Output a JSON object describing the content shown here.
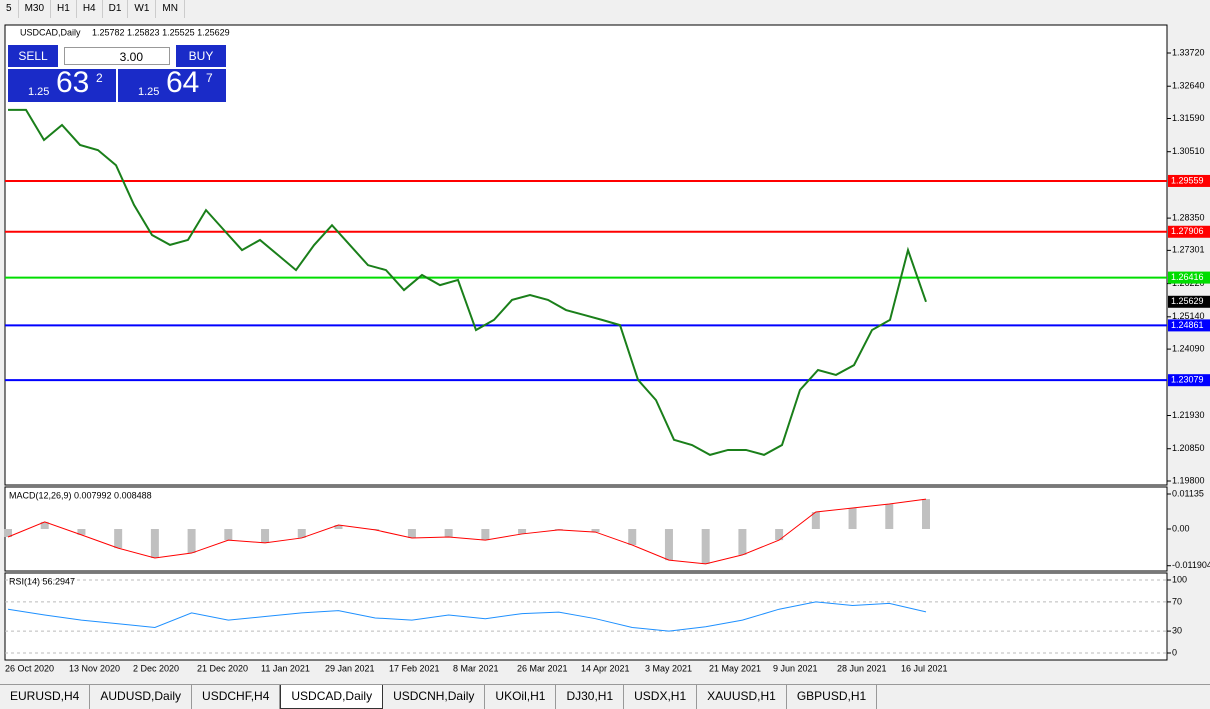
{
  "toolbar": {
    "timeframes": [
      "5",
      "M30",
      "H1",
      "H4",
      "D1",
      "W1",
      "MN"
    ]
  },
  "header": {
    "symbol": "USDCAD,Daily",
    "quote": "1.25782 1.25823 1.25525 1.25629"
  },
  "trade_panel": {
    "sell": "SELL",
    "buy": "BUY",
    "lots": "3.00",
    "sell_price": {
      "prefix": "1.25",
      "big": "63",
      "small": "2"
    },
    "buy_price": {
      "prefix": "1.25",
      "big": "64",
      "small": "7"
    }
  },
  "chart": {
    "type": "line",
    "color": "#1a7f1a",
    "values": [
      1.3187,
      1.3187,
      1.3089,
      1.3138,
      1.3073,
      1.3056,
      1.3007,
      1.2878,
      1.278,
      1.2748,
      1.2764,
      1.2861,
      1.2796,
      1.2731,
      1.2764,
      1.2715,
      1.2666,
      1.2747,
      1.2812,
      1.2747,
      1.2682,
      1.2666,
      1.2601,
      1.265,
      1.2617,
      1.2634,
      1.2471,
      1.2504,
      1.2569,
      1.2585,
      1.2569,
      1.2536,
      1.252,
      1.2504,
      1.2487,
      1.2309,
      1.2243,
      1.2114,
      1.2097,
      1.2065,
      1.2081,
      1.2081,
      1.2065,
      1.2097,
      1.2276,
      1.2341,
      1.2325,
      1.2357,
      1.2471,
      1.2504,
      1.2731,
      1.25629
    ],
    "ylim": [
      1.1967,
      1.34631
    ],
    "yticks": [
      {
        "value": 1.3372,
        "label": "1.33720"
      },
      {
        "value": 1.3264,
        "label": "1.32640"
      },
      {
        "value": 1.3159,
        "label": "1.31590"
      },
      {
        "value": 1.3051,
        "label": "1.30510"
      },
      {
        "value": 1.2835,
        "label": "1.28350"
      },
      {
        "value": 1.27301,
        "label": "1.27301"
      },
      {
        "value": 1.2622,
        "label": "1.26220"
      },
      {
        "value": 1.2514,
        "label": "1.25140"
      },
      {
        "value": 1.2409,
        "label": "1.24090"
      },
      {
        "value": 1.2193,
        "label": "1.21930"
      },
      {
        "value": 1.2085,
        "label": "1.20850"
      },
      {
        "value": 1.198,
        "label": "1.19800"
      }
    ],
    "levels": [
      {
        "value": 1.29559,
        "color": "#ff0000"
      },
      {
        "value": 1.27906,
        "color": "#ff0000"
      },
      {
        "value": 1.26416,
        "color": "#00dd00"
      },
      {
        "value": 1.24861,
        "color": "#0000ff"
      },
      {
        "value": 1.23079,
        "color": "#0000ff"
      }
    ],
    "current": 1.25629,
    "x_labels": [
      "26 Oct 2020",
      "13 Nov 2020",
      "2 Dec 2020",
      "21 Dec 2020",
      "11 Jan 2021",
      "29 Jan 2021",
      "17 Feb 2021",
      "8 Mar 2021",
      "26 Mar 2021",
      "14 Apr 2021",
      "3 May 2021",
      "21 May 2021",
      "9 Jun 2021",
      "28 Jun 2021",
      "16 Jul 2021"
    ]
  },
  "macd": {
    "title": "MACD(12,26,9) 0.007992 0.008488",
    "color": "#ff0000",
    "histogram_color": "#c0c0c0",
    "values": [
      -0.0026,
      0.0023,
      -0.0019,
      -0.0062,
      -0.0094,
      -0.0078,
      -0.0036,
      -0.0045,
      -0.0029,
      0.0013,
      -0.0003,
      -0.0029,
      -0.0026,
      -0.0036,
      -0.0016,
      -0.0003,
      -0.001,
      -0.0052,
      -0.0101,
      -0.0113,
      -0.0084,
      -0.0036,
      0.0055,
      0.0068,
      0.0081,
      0.0097
    ],
    "ylim": [
      -0.01362,
      0.01362
    ],
    "yticks": [
      {
        "value": 0.01135,
        "label": "0.01135"
      },
      {
        "value": 0,
        "label": "0.00"
      },
      {
        "value": -0.011904,
        "label": "-0.011904"
      }
    ]
  },
  "rsi": {
    "title": "RSI(14) 56.2947",
    "color": "#1e90ff",
    "values": [
      60,
      52,
      45,
      40,
      35,
      55,
      45,
      50,
      55,
      58,
      48,
      45,
      52,
      47,
      54,
      56,
      47,
      35,
      30,
      36,
      45,
      60,
      70,
      65,
      68,
      56.3
    ],
    "ylim": [
      -9.6,
      109.6
    ],
    "yticks": [
      100,
      70,
      30,
      0
    ]
  },
  "tabs": {
    "items": [
      "EURUSD,H4",
      "AUDUSD,Daily",
      "USDCHF,H4",
      "USDCAD,Daily",
      "USDCNH,Daily",
      "UKOil,H1",
      "DJ30,H1",
      "USDX,H1",
      "XAUUSD,H1",
      "GBPUSD,H1"
    ],
    "active": 3
  }
}
